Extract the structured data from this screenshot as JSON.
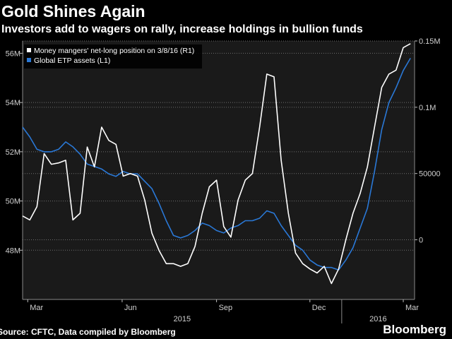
{
  "header": {
    "title": "Gold Shines Again",
    "subtitle": "Investors add to wagers on rally, increase holdings in bullion funds"
  },
  "footer": {
    "source": "Source: CFTC, Data compiled by Bloomberg",
    "brand": "Bloomberg"
  },
  "colors": {
    "background": "#000000",
    "plot_background": "#1a1a1a",
    "gridline": "#6e6e6e",
    "white_series": "#ffffff",
    "blue_series": "#2a78d6"
  },
  "chart_data": {
    "type": "line",
    "grid": true,
    "legend_position": "top-left",
    "x_tick_labels": [
      "Mar",
      "Jun",
      "Sep",
      "Dec",
      "Mar"
    ],
    "year_labels": [
      "2015",
      "2016"
    ],
    "left_axis": {
      "ticks": [
        "48M",
        "50M",
        "52M",
        "54M",
        "56M"
      ],
      "range": [
        46.0,
        56.5
      ]
    },
    "right_axis": {
      "ticks": [
        "0",
        "50000",
        "0.1M",
        "0.15M"
      ],
      "range": [
        -45000,
        150000
      ]
    },
    "series": [
      {
        "name": "Money mangers' net-long position on 3/8/16 (R1)",
        "axis": "right",
        "values": [
          [
            "2015-02-24",
            18000
          ],
          [
            "2015-03-03",
            15000
          ],
          [
            "2015-03-10",
            25000
          ],
          [
            "2015-03-17",
            65000
          ],
          [
            "2015-03-24",
            57000
          ],
          [
            "2015-03-31",
            58000
          ],
          [
            "2015-04-07",
            60000
          ],
          [
            "2015-04-14",
            15000
          ],
          [
            "2015-04-21",
            20000
          ],
          [
            "2015-04-28",
            70000
          ],
          [
            "2015-05-05",
            55000
          ],
          [
            "2015-05-12",
            85000
          ],
          [
            "2015-05-19",
            75000
          ],
          [
            "2015-05-26",
            72000
          ],
          [
            "2015-06-02",
            48000
          ],
          [
            "2015-06-09",
            50000
          ],
          [
            "2015-06-16",
            48000
          ],
          [
            "2015-06-23",
            30000
          ],
          [
            "2015-06-30",
            5000
          ],
          [
            "2015-07-07",
            -8000
          ],
          [
            "2015-07-14",
            -18000
          ],
          [
            "2015-07-21",
            -18000
          ],
          [
            "2015-07-28",
            -20000
          ],
          [
            "2015-08-04",
            -18000
          ],
          [
            "2015-08-11",
            -5000
          ],
          [
            "2015-08-18",
            20000
          ],
          [
            "2015-08-25",
            40000
          ],
          [
            "2015-09-01",
            45000
          ],
          [
            "2015-09-08",
            10000
          ],
          [
            "2015-09-15",
            2000
          ],
          [
            "2015-09-22",
            30000
          ],
          [
            "2015-09-29",
            45000
          ],
          [
            "2015-10-06",
            50000
          ],
          [
            "2015-10-13",
            85000
          ],
          [
            "2015-10-20",
            125000
          ],
          [
            "2015-10-27",
            123000
          ],
          [
            "2015-11-03",
            60000
          ],
          [
            "2015-11-10",
            20000
          ],
          [
            "2015-11-17",
            -10000
          ],
          [
            "2015-11-24",
            -18000
          ],
          [
            "2015-12-01",
            -22000
          ],
          [
            "2015-12-08",
            -25000
          ],
          [
            "2015-12-15",
            -20000
          ],
          [
            "2015-12-22",
            -33000
          ],
          [
            "2015-12-29",
            -22000
          ],
          [
            "2016-01-05",
            0
          ],
          [
            "2016-01-12",
            20000
          ],
          [
            "2016-01-19",
            35000
          ],
          [
            "2016-01-26",
            55000
          ],
          [
            "2016-02-02",
            85000
          ],
          [
            "2016-02-09",
            115000
          ],
          [
            "2016-02-16",
            125000
          ],
          [
            "2016-02-23",
            128000
          ],
          [
            "2016-03-01",
            145000
          ],
          [
            "2016-03-08",
            148000
          ]
        ]
      },
      {
        "name": "Global ETP assets (L1)",
        "axis": "left",
        "values": [
          [
            "2015-02-24",
            53.0
          ],
          [
            "2015-03-03",
            52.6
          ],
          [
            "2015-03-10",
            52.1
          ],
          [
            "2015-03-17",
            52.0
          ],
          [
            "2015-03-24",
            52.0
          ],
          [
            "2015-03-31",
            52.1
          ],
          [
            "2015-04-07",
            52.4
          ],
          [
            "2015-04-14",
            52.2
          ],
          [
            "2015-04-21",
            51.9
          ],
          [
            "2015-04-28",
            51.5
          ],
          [
            "2015-05-05",
            51.4
          ],
          [
            "2015-05-12",
            51.3
          ],
          [
            "2015-05-19",
            51.1
          ],
          [
            "2015-05-26",
            51.0
          ],
          [
            "2015-06-02",
            51.2
          ],
          [
            "2015-06-09",
            51.1
          ],
          [
            "2015-06-16",
            51.1
          ],
          [
            "2015-06-23",
            50.8
          ],
          [
            "2015-06-30",
            50.5
          ],
          [
            "2015-07-07",
            49.9
          ],
          [
            "2015-07-14",
            49.2
          ],
          [
            "2015-07-21",
            48.6
          ],
          [
            "2015-07-28",
            48.5
          ],
          [
            "2015-08-04",
            48.6
          ],
          [
            "2015-08-11",
            48.8
          ],
          [
            "2015-08-18",
            49.1
          ],
          [
            "2015-08-25",
            49.0
          ],
          [
            "2015-09-01",
            48.8
          ],
          [
            "2015-09-08",
            48.7
          ],
          [
            "2015-09-15",
            48.9
          ],
          [
            "2015-09-22",
            49.0
          ],
          [
            "2015-09-29",
            49.2
          ],
          [
            "2015-10-06",
            49.2
          ],
          [
            "2015-10-13",
            49.3
          ],
          [
            "2015-10-20",
            49.6
          ],
          [
            "2015-10-27",
            49.5
          ],
          [
            "2015-11-03",
            49.0
          ],
          [
            "2015-11-10",
            48.6
          ],
          [
            "2015-11-17",
            48.2
          ],
          [
            "2015-11-24",
            48.0
          ],
          [
            "2015-12-01",
            47.6
          ],
          [
            "2015-12-08",
            47.4
          ],
          [
            "2015-12-15",
            47.3
          ],
          [
            "2015-12-22",
            47.3
          ],
          [
            "2015-12-29",
            47.2
          ],
          [
            "2016-01-05",
            47.6
          ],
          [
            "2016-01-12",
            48.1
          ],
          [
            "2016-01-19",
            48.9
          ],
          [
            "2016-01-26",
            49.7
          ],
          [
            "2016-02-02",
            51.2
          ],
          [
            "2016-02-09",
            52.9
          ],
          [
            "2016-02-16",
            54.0
          ],
          [
            "2016-02-23",
            54.6
          ],
          [
            "2016-03-01",
            55.3
          ],
          [
            "2016-03-08",
            55.8
          ]
        ]
      }
    ]
  }
}
